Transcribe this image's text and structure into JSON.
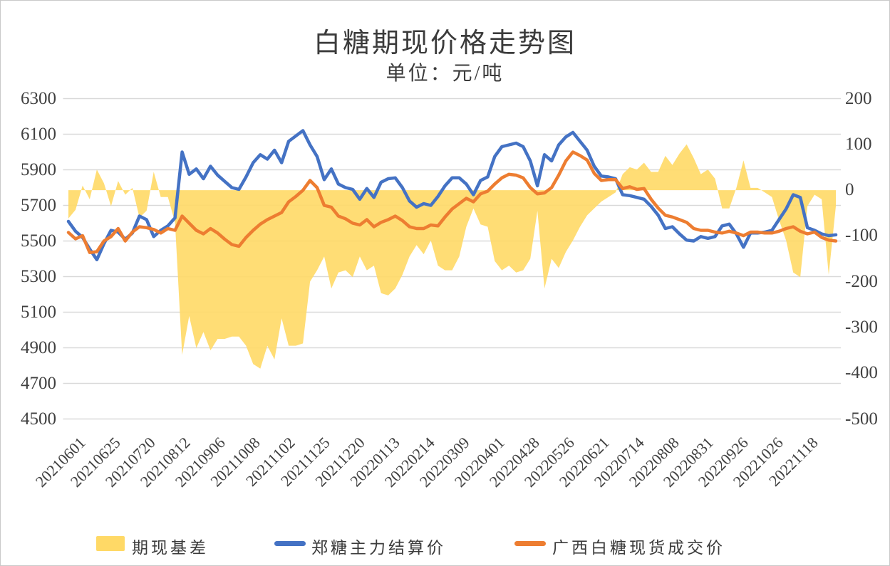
{
  "title": "白糖期现价格走势图",
  "subtitle": "单位：元/吨",
  "chart_data": {
    "type": "combo",
    "grid": "horizontal",
    "legend_position": "bottom",
    "x_tick_labels": [
      "20210601",
      "20210625",
      "20210720",
      "20210812",
      "20210906",
      "20211008",
      "20211102",
      "20211125",
      "20211220",
      "20220113",
      "20220214",
      "20220309",
      "20220401",
      "20220428",
      "20220526",
      "20220621",
      "20220714",
      "20220808",
      "20220831",
      "20220926",
      "20221026",
      "20221118"
    ],
    "left_axis": {
      "min": 4500,
      "max": 6300,
      "step": 200,
      "ticks": [
        "6300",
        "6100",
        "5900",
        "5700",
        "5500",
        "5300",
        "5100",
        "4900",
        "4700",
        "4500"
      ]
    },
    "right_axis": {
      "min": -500,
      "max": 200,
      "step": 100,
      "ticks": [
        "200",
        "100",
        "0",
        "-100",
        "-200",
        "-300",
        "-400",
        "-500"
      ]
    },
    "colors": {
      "basis_area": "#FFD966",
      "futures_line": "#4472C4",
      "spot_line": "#ED7D31",
      "gridline": "#D9D9D9",
      "text": "#404040"
    },
    "series": [
      {
        "name": "期现基差",
        "type": "area",
        "axis": "right",
        "color": "#FFD966",
        "values": [
          -62,
          -43,
          10,
          -20,
          45,
          15,
          -35,
          20,
          -10,
          5,
          -60,
          -45,
          40,
          -15,
          -15,
          -70,
          -360,
          -275,
          -345,
          -310,
          -350,
          -325,
          -325,
          -320,
          -320,
          -340,
          -380,
          -390,
          -340,
          -370,
          -280,
          -340,
          -340,
          -335,
          -200,
          -175,
          -145,
          -215,
          -180,
          -175,
          -190,
          -145,
          -175,
          -165,
          -225,
          -230,
          -215,
          -185,
          -145,
          -120,
          -140,
          -110,
          -165,
          -175,
          -175,
          -145,
          -80,
          -40,
          -75,
          -80,
          -155,
          -175,
          -165,
          -180,
          -175,
          -150,
          -45,
          -215,
          -150,
          -170,
          -135,
          -110,
          -80,
          -55,
          -40,
          -25,
          -15,
          -5,
          35,
          50,
          45,
          60,
          40,
          40,
          75,
          55,
          80,
          100,
          70,
          35,
          45,
          25,
          -40,
          -40,
          5,
          65,
          5,
          5,
          -5,
          -15,
          -65,
          -110,
          -180,
          -190,
          -35,
          -10,
          -20,
          -185,
          -35
        ]
      },
      {
        "name": "郑糖主力结算价",
        "type": "line",
        "axis": "left",
        "color": "#4472C4",
        "values": [
          5610,
          5555,
          5520,
          5455,
          5395,
          5485,
          5560,
          5550,
          5510,
          5545,
          5640,
          5620,
          5525,
          5560,
          5585,
          5630,
          6000,
          5875,
          5905,
          5850,
          5920,
          5870,
          5835,
          5800,
          5790,
          5860,
          5940,
          5985,
          5960,
          6010,
          5940,
          6060,
          6090,
          6120,
          6040,
          5975,
          5845,
          5905,
          5820,
          5800,
          5790,
          5735,
          5795,
          5745,
          5830,
          5850,
          5855,
          5800,
          5725,
          5690,
          5710,
          5700,
          5750,
          5810,
          5855,
          5855,
          5820,
          5760,
          5840,
          5860,
          5975,
          6030,
          6040,
          6050,
          6030,
          5950,
          5810,
          5985,
          5950,
          6040,
          6085,
          6110,
          6060,
          6010,
          5920,
          5865,
          5860,
          5850,
          5760,
          5755,
          5745,
          5735,
          5695,
          5645,
          5570,
          5580,
          5540,
          5505,
          5500,
          5525,
          5515,
          5525,
          5585,
          5595,
          5540,
          5465,
          5545,
          5545,
          5550,
          5560,
          5620,
          5680,
          5760,
          5745,
          5575,
          5560,
          5540,
          5530,
          5535
        ]
      },
      {
        "name": "广西白糖现货成交价",
        "type": "line",
        "axis": "left",
        "color": "#ED7D31",
        "values": [
          5548,
          5512,
          5530,
          5435,
          5440,
          5500,
          5525,
          5570,
          5500,
          5550,
          5580,
          5575,
          5565,
          5545,
          5570,
          5560,
          5640,
          5600,
          5560,
          5540,
          5570,
          5545,
          5510,
          5480,
          5470,
          5520,
          5560,
          5595,
          5620,
          5640,
          5660,
          5720,
          5750,
          5785,
          5840,
          5800,
          5700,
          5690,
          5640,
          5625,
          5600,
          5590,
          5620,
          5580,
          5605,
          5620,
          5640,
          5615,
          5580,
          5570,
          5570,
          5590,
          5585,
          5635,
          5680,
          5710,
          5740,
          5720,
          5765,
          5780,
          5820,
          5855,
          5875,
          5870,
          5855,
          5800,
          5765,
          5770,
          5800,
          5870,
          5950,
          6000,
          5980,
          5955,
          5880,
          5840,
          5845,
          5845,
          5795,
          5805,
          5790,
          5795,
          5735,
          5685,
          5645,
          5635,
          5620,
          5605,
          5570,
          5560,
          5560,
          5550,
          5545,
          5555,
          5545,
          5530,
          5550,
          5550,
          5545,
          5545,
          5555,
          5570,
          5580,
          5555,
          5540,
          5550,
          5520,
          5505,
          5500
        ]
      }
    ]
  }
}
